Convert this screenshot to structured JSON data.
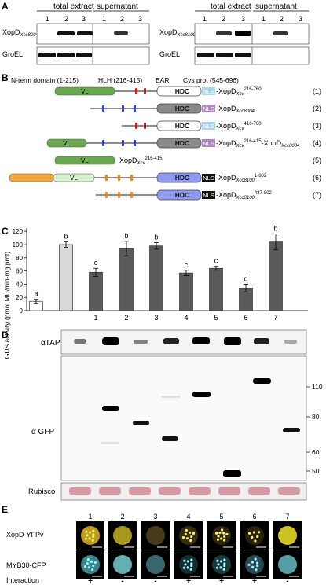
{
  "panels": {
    "a": "A",
    "b": "B",
    "c": "C",
    "d": "D",
    "e": "E"
  },
  "panel_a": {
    "left": {
      "total_label": "total extract",
      "super_label": "supernatant",
      "lanes_total": [
        "1",
        "2",
        "3"
      ],
      "lanes_super": [
        "1",
        "2",
        "3"
      ],
      "protein_main": "XopD",
      "protein_sub": "Xcc8004",
      "control": "GroEL"
    },
    "right": {
      "total_label": "total extract",
      "super_label": "supernatant",
      "lanes_total": [
        "1",
        "2",
        "3"
      ],
      "lanes_super": [
        "1",
        "2",
        "3"
      ],
      "protein_main": "XopD",
      "protein_sub": "Xcc8100",
      "control": "GroEL"
    }
  },
  "panel_b": {
    "header": {
      "nterm": "N-term domain (1-215)",
      "hlh": "HLH (216-415)",
      "ear": "EAR",
      "cys": "Cys prot (545-696)"
    },
    "domain_labels": {
      "vl": "VL",
      "hdc": "HDC",
      "nls": "NLS"
    },
    "constructs": [
      {
        "num": "(1)",
        "name": "XopD",
        "sub": "Xcv",
        "sup": "216-760"
      },
      {
        "num": "(2)",
        "name": "XopD",
        "sub": "Xcc8004",
        "sup": ""
      },
      {
        "num": "(3)",
        "name": "XopD",
        "sub": "Xcv",
        "sup": "416-760"
      },
      {
        "num": "(4)",
        "name": "XopD",
        "sub": "Xcv",
        "sup": "216-415",
        "name2": "-XopD",
        "sub2": "Xcc8004"
      },
      {
        "num": "(5)",
        "name": "XopD",
        "sub": "Xcv",
        "sup": "216-415"
      },
      {
        "num": "(6)",
        "name": "XopD",
        "sub": "Xcc8100",
        "sup": "1-802"
      },
      {
        "num": "(7)",
        "name": "XopD",
        "sub": "Xcc8100",
        "sup": "437-802"
      }
    ],
    "colors": {
      "vl_green": "#6aa84f",
      "vl_light": "#d9f2d0",
      "nterm_orange": "#f4a83a",
      "hdc_gray": "#8a8a8a",
      "hdc_white": "#ffffff",
      "hdc_blue": "#8f9bf0",
      "nls_blue": "#a9d7f3",
      "nls_purple": "#b485c9",
      "nls_black": "#111111",
      "ear_red": "#d42020",
      "hlh_blue": "#3344cc",
      "orange_mark": "#e08a2c"
    }
  },
  "chart_data": {
    "type": "bar",
    "ylabel": "GUS activity (pmol MU/min-mg prot)",
    "ylim": [
      0,
      125
    ],
    "yticks": [
      0,
      20,
      40,
      60,
      80,
      100,
      120
    ],
    "categories": [
      "",
      "",
      "1",
      "2",
      "3",
      "4",
      "5",
      "6",
      "7"
    ],
    "values": [
      14,
      100,
      58,
      94,
      98,
      57,
      64,
      34,
      104
    ],
    "errors": [
      3,
      4,
      6,
      11,
      5,
      4,
      3,
      6,
      12
    ],
    "letters": [
      "a",
      "b",
      "c",
      "b",
      "b",
      "c",
      "c",
      "d",
      "b"
    ],
    "bar_colors": [
      "#ffffff",
      "#d9d9d9",
      "#5a5a5a",
      "#5a5a5a",
      "#5a5a5a",
      "#5a5a5a",
      "#5a5a5a",
      "#5a5a5a",
      "#5a5a5a"
    ]
  },
  "panel_d": {
    "tap": "αTAP",
    "gfp": "α GFP",
    "rubisco": "Rubisco",
    "markers": [
      "110",
      "80",
      "60",
      "50"
    ]
  },
  "panel_e": {
    "lanes": [
      "1",
      "2",
      "3",
      "4",
      "5",
      "6",
      "7"
    ],
    "row1": "XopD-YFPv",
    "row2": "MYB30-CFP",
    "interaction_label": "Interaction",
    "interaction": [
      "+",
      "-",
      "-",
      "+",
      "+",
      "+",
      "-"
    ]
  }
}
